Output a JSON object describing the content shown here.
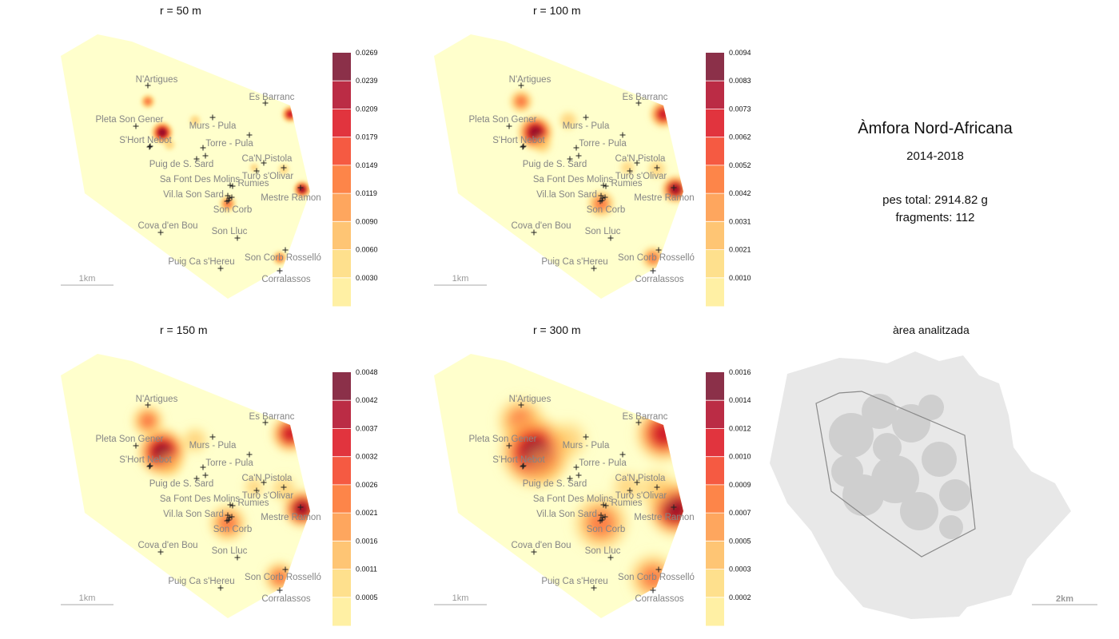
{
  "panels": [
    {
      "title": "r =  50 m",
      "ticks": [
        "0.0269",
        "0.0239",
        "0.0209",
        "0.0179",
        "0.0149",
        "0.0119",
        "0.0090",
        "0.0060",
        "0.0030"
      ]
    },
    {
      "title": "r =  100 m",
      "ticks": [
        "0.0094",
        "0.0083",
        "0.0073",
        "0.0062",
        "0.0052",
        "0.0042",
        "0.0031",
        "0.0021",
        "0.0010"
      ]
    },
    {
      "title": "r =  150 m",
      "ticks": [
        "0.0048",
        "0.0042",
        "0.0037",
        "0.0032",
        "0.0026",
        "0.0021",
        "0.0016",
        "0.0011",
        "0.0005"
      ]
    },
    {
      "title": "r =  300 m",
      "ticks": [
        "0.0016",
        "0.0014",
        "0.0012",
        "0.0010",
        "0.0009",
        "0.0007",
        "0.0005",
        "0.0003",
        "0.0002"
      ]
    }
  ],
  "places": [
    "N'Artigues",
    "Es Barranc",
    "Pleta Son Gener",
    "Murs - Pula",
    "S'Hort Nebot",
    "Torre - Pula",
    "Ca'N Pistola",
    "Puig de S. Sard",
    "Turó s'Olivar",
    "Sa Font Des Molins",
    "Rumies",
    "Vil.la Son Sard",
    "Mestre Ramon",
    "Son Corb",
    "Cova d'en Bou",
    "Son Lluc",
    "Puig Ca s'Hereu",
    "Son Corb Rosselló",
    "Corralassos"
  ],
  "scale_small": "1km",
  "scale_large": "2km",
  "info": {
    "title": "Àmfora Nord-Africana",
    "years": "2014-2018",
    "weight_line": "pes total:  2914.82 g",
    "fragments_line": "fragments:  112"
  },
  "area_title": "àrea analitzada",
  "colors": {
    "palette": [
      "#ffeda0",
      "#fed976",
      "#feb24c",
      "#fd8d3c",
      "#fc4e2a",
      "#e31a1c",
      "#bd0026",
      "#800026"
    ],
    "map_base": "#ffffcc",
    "area_light": "#e8e8e8",
    "area_dark": "#cfcfcf"
  }
}
